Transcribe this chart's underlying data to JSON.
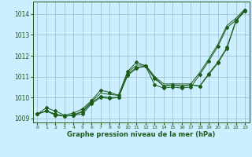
{
  "title": "Graphe pression niveau de la mer (hPa)",
  "background_color": "#cceeff",
  "grid_color": "#99bbcc",
  "line_color": "#1a5c1a",
  "xlim": [
    -0.5,
    23.5
  ],
  "ylim": [
    1008.8,
    1014.6
  ],
  "yticks": [
    1009,
    1010,
    1011,
    1012,
    1013,
    1014
  ],
  "xticks": [
    0,
    1,
    2,
    3,
    4,
    5,
    6,
    7,
    8,
    9,
    10,
    11,
    12,
    13,
    14,
    15,
    16,
    17,
    18,
    19,
    20,
    21,
    22,
    23
  ],
  "series_with_markers": [
    [
      1009.2,
      1009.35,
      1009.15,
      1009.1,
      1009.15,
      1009.2,
      1009.7,
      1010.0,
      1009.95,
      1010.0,
      1011.05,
      1011.4,
      1011.5,
      1010.9,
      1010.55,
      1010.6,
      1010.55,
      1010.6,
      1010.55,
      1011.1,
      1011.65,
      1012.35,
      1013.65,
      1014.15
    ],
    [
      1009.2,
      1009.35,
      1009.2,
      1009.1,
      1009.15,
      1009.3,
      1009.75,
      1010.05,
      1010.0,
      1010.0,
      1011.1,
      1011.45,
      1011.5,
      1010.95,
      1010.55,
      1010.6,
      1010.55,
      1010.6,
      1010.55,
      1011.15,
      1011.7,
      1012.4,
      1013.7,
      1014.2
    ],
    [
      1009.2,
      1009.5,
      1009.35,
      1009.15,
      1009.25,
      1009.45,
      1009.85,
      1010.35,
      1010.25,
      1010.1,
      1011.25,
      1011.7,
      1011.5,
      1010.6,
      1010.45,
      1010.5,
      1010.45,
      1010.5,
      1011.1,
      1011.75,
      1012.45,
      1013.35,
      1013.7,
      1014.15
    ]
  ],
  "series_smooth": [
    1009.2,
    1009.35,
    1009.2,
    1009.1,
    1009.15,
    1009.35,
    1009.8,
    1010.2,
    1010.15,
    1010.1,
    1011.2,
    1011.55,
    1011.55,
    1011.0,
    1010.65,
    1010.65,
    1010.65,
    1010.65,
    1011.2,
    1011.85,
    1012.55,
    1013.45,
    1013.8,
    1014.25
  ]
}
